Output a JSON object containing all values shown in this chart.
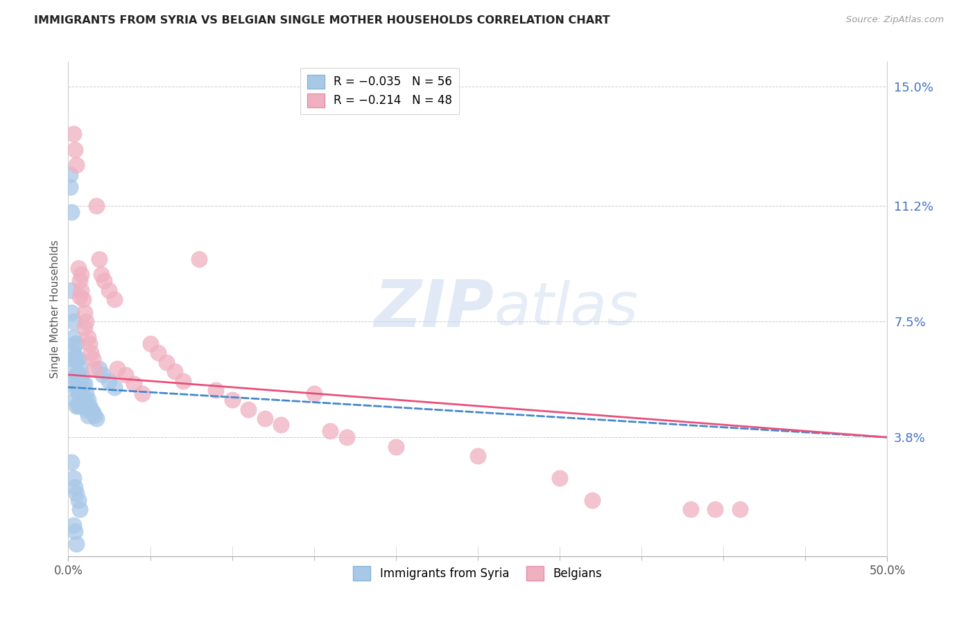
{
  "title": "IMMIGRANTS FROM SYRIA VS BELGIAN SINGLE MOTHER HOUSEHOLDS CORRELATION CHART",
  "source": "Source: ZipAtlas.com",
  "ylabel": "Single Mother Households",
  "x_min": 0.0,
  "x_max": 0.5,
  "y_min": 0.0,
  "y_max": 0.158,
  "right_yticks": [
    0.038,
    0.075,
    0.112,
    0.15
  ],
  "right_yticklabels": [
    "3.8%",
    "7.5%",
    "11.2%",
    "15.0%"
  ],
  "gridline_y": [
    0.038,
    0.075,
    0.112,
    0.15
  ],
  "legend_entry1_r": "-0.035",
  "legend_entry1_n": "56",
  "legend_entry2_r": "-0.214",
  "legend_entry2_n": "48",
  "blue_color": "#a8c8e8",
  "blue_line_color": "#4488cc",
  "pink_color": "#f0b0c0",
  "pink_line_color": "#e8507a",
  "watermark_zip": "ZIP",
  "watermark_atlas": "atlas",
  "watermark_color": "#d0dff0",
  "blue_scatter_x": [
    0.001,
    0.001,
    0.002,
    0.002,
    0.002,
    0.002,
    0.003,
    0.003,
    0.003,
    0.003,
    0.003,
    0.004,
    0.004,
    0.004,
    0.004,
    0.005,
    0.005,
    0.005,
    0.005,
    0.005,
    0.006,
    0.006,
    0.006,
    0.006,
    0.007,
    0.007,
    0.007,
    0.008,
    0.008,
    0.008,
    0.009,
    0.009,
    0.01,
    0.01,
    0.011,
    0.011,
    0.012,
    0.012,
    0.013,
    0.014,
    0.015,
    0.016,
    0.017,
    0.019,
    0.021,
    0.025,
    0.028,
    0.002,
    0.003,
    0.004,
    0.005,
    0.006,
    0.007,
    0.003,
    0.004,
    0.005
  ],
  "blue_scatter_y": [
    0.122,
    0.118,
    0.11,
    0.085,
    0.078,
    0.063,
    0.075,
    0.07,
    0.065,
    0.06,
    0.055,
    0.068,
    0.063,
    0.057,
    0.05,
    0.068,
    0.063,
    0.058,
    0.053,
    0.048,
    0.063,
    0.058,
    0.053,
    0.048,
    0.06,
    0.055,
    0.05,
    0.058,
    0.053,
    0.048,
    0.055,
    0.05,
    0.055,
    0.05,
    0.052,
    0.047,
    0.05,
    0.045,
    0.048,
    0.047,
    0.046,
    0.045,
    0.044,
    0.06,
    0.058,
    0.056,
    0.054,
    0.03,
    0.025,
    0.022,
    0.02,
    0.018,
    0.015,
    0.01,
    0.008,
    0.004
  ],
  "pink_scatter_x": [
    0.003,
    0.004,
    0.005,
    0.006,
    0.007,
    0.007,
    0.008,
    0.008,
    0.009,
    0.01,
    0.01,
    0.011,
    0.012,
    0.013,
    0.014,
    0.015,
    0.016,
    0.017,
    0.019,
    0.02,
    0.022,
    0.025,
    0.028,
    0.03,
    0.035,
    0.04,
    0.045,
    0.05,
    0.055,
    0.06,
    0.065,
    0.07,
    0.08,
    0.09,
    0.1,
    0.11,
    0.12,
    0.13,
    0.15,
    0.16,
    0.17,
    0.2,
    0.25,
    0.3,
    0.32,
    0.38,
    0.395,
    0.41
  ],
  "pink_scatter_y": [
    0.135,
    0.13,
    0.125,
    0.092,
    0.088,
    0.083,
    0.09,
    0.085,
    0.082,
    0.078,
    0.073,
    0.075,
    0.07,
    0.068,
    0.065,
    0.063,
    0.06,
    0.112,
    0.095,
    0.09,
    0.088,
    0.085,
    0.082,
    0.06,
    0.058,
    0.055,
    0.052,
    0.068,
    0.065,
    0.062,
    0.059,
    0.056,
    0.095,
    0.053,
    0.05,
    0.047,
    0.044,
    0.042,
    0.052,
    0.04,
    0.038,
    0.035,
    0.032,
    0.025,
    0.018,
    0.015,
    0.015,
    0.015
  ],
  "blue_trend_x0": 0.0,
  "blue_trend_y0": 0.054,
  "blue_trend_x1": 0.5,
  "blue_trend_y1": 0.038,
  "pink_trend_x0": 0.0,
  "pink_trend_y0": 0.058,
  "pink_trend_x1": 0.5,
  "pink_trend_y1": 0.038,
  "x_minor_ticks": [
    0.05,
    0.1,
    0.15,
    0.2,
    0.25,
    0.3,
    0.35,
    0.4,
    0.45
  ]
}
